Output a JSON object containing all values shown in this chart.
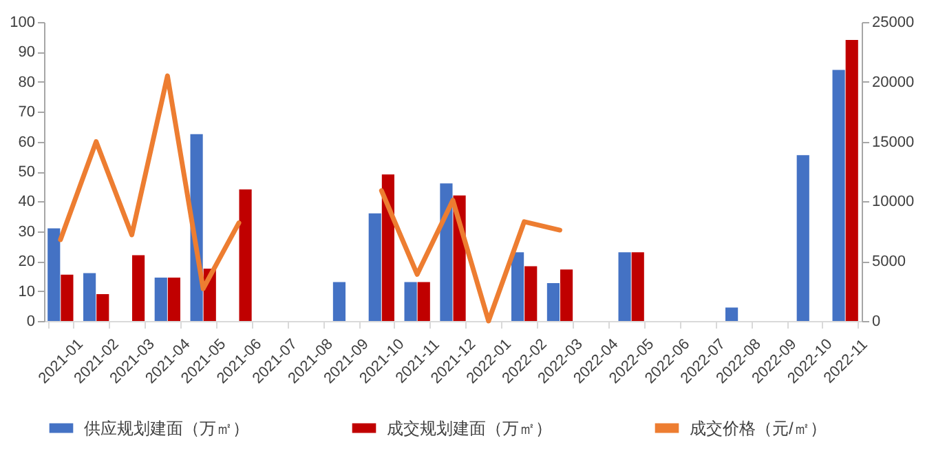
{
  "chart_data": {
    "type": "bar",
    "categories": [
      "2021-01",
      "2021-02",
      "2021-03",
      "2021-04",
      "2021-05",
      "2021-06",
      "2021-07",
      "2021-08",
      "2021-09",
      "2021-10",
      "2021-11",
      "2021-12",
      "2022-01",
      "2022-02",
      "2022-03",
      "2022-04",
      "2022-05",
      "2022-06",
      "2022-07",
      "2022-08",
      "2022-09",
      "2022-10",
      "2022-11"
    ],
    "series": [
      {
        "name": "供应规划建面（万㎡）",
        "color": "#4472c4",
        "values": [
          31,
          16,
          null,
          14.5,
          62.5,
          null,
          null,
          null,
          13,
          36,
          13,
          46,
          null,
          23,
          12.7,
          null,
          23,
          null,
          null,
          4.5,
          null,
          55.5,
          84
        ]
      },
      {
        "name": "成交规划建面（万㎡）",
        "color": "#c00000",
        "values": [
          15.5,
          9,
          22,
          14.5,
          17.5,
          44,
          null,
          null,
          null,
          49,
          13,
          42,
          null,
          18.3,
          17.2,
          null,
          23,
          null,
          null,
          null,
          null,
          null,
          94
        ]
      },
      {
        "name": "成交价格（元/㎡）",
        "type": "line",
        "axis": "y2",
        "color": "#ed7d31",
        "values": [
          6800,
          15000,
          7200,
          20500,
          2700,
          8200,
          null,
          null,
          null,
          10900,
          3900,
          10100,
          0,
          8300,
          7600,
          null,
          null,
          null,
          null,
          null,
          null,
          null,
          null
        ]
      }
    ],
    "ylim": [
      0,
      100
    ],
    "yticks": [
      0,
      10,
      20,
      30,
      40,
      50,
      60,
      70,
      80,
      90,
      100
    ],
    "y2lim": [
      0,
      25000
    ],
    "y2ticks": [
      0,
      5000,
      10000,
      15000,
      20000,
      25000
    ],
    "legend": "bottom",
    "grid": false
  }
}
